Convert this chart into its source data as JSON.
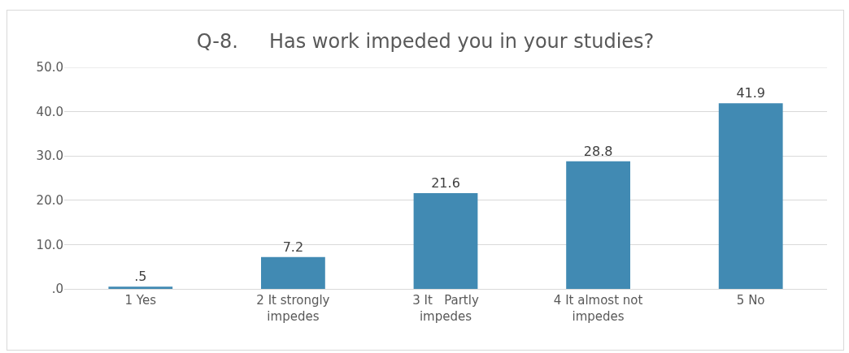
{
  "chart_data": {
    "type": "bar",
    "title": "Q-8.     Has work impeded you in your studies?",
    "categories": [
      "1 Yes",
      "2 It strongly impedes",
      "3 It   Partly impedes",
      "4 It almost not impedes",
      "5 No"
    ],
    "values": [
      0.5,
      7.2,
      21.6,
      28.8,
      41.9
    ],
    "value_labels": [
      ".5",
      "7.2",
      "21.6",
      "28.8",
      "41.9"
    ],
    "color": "#418ab3",
    "ylim": [
      0,
      50
    ],
    "yticks": [
      {
        "value": 0,
        "label": ".0"
      },
      {
        "value": 10,
        "label": "10.0"
      },
      {
        "value": 20,
        "label": "20.0"
      },
      {
        "value": 30,
        "label": "30.0"
      },
      {
        "value": 40,
        "label": "40.0"
      },
      {
        "value": 50,
        "label": "50.0"
      }
    ],
    "grid": "y"
  }
}
